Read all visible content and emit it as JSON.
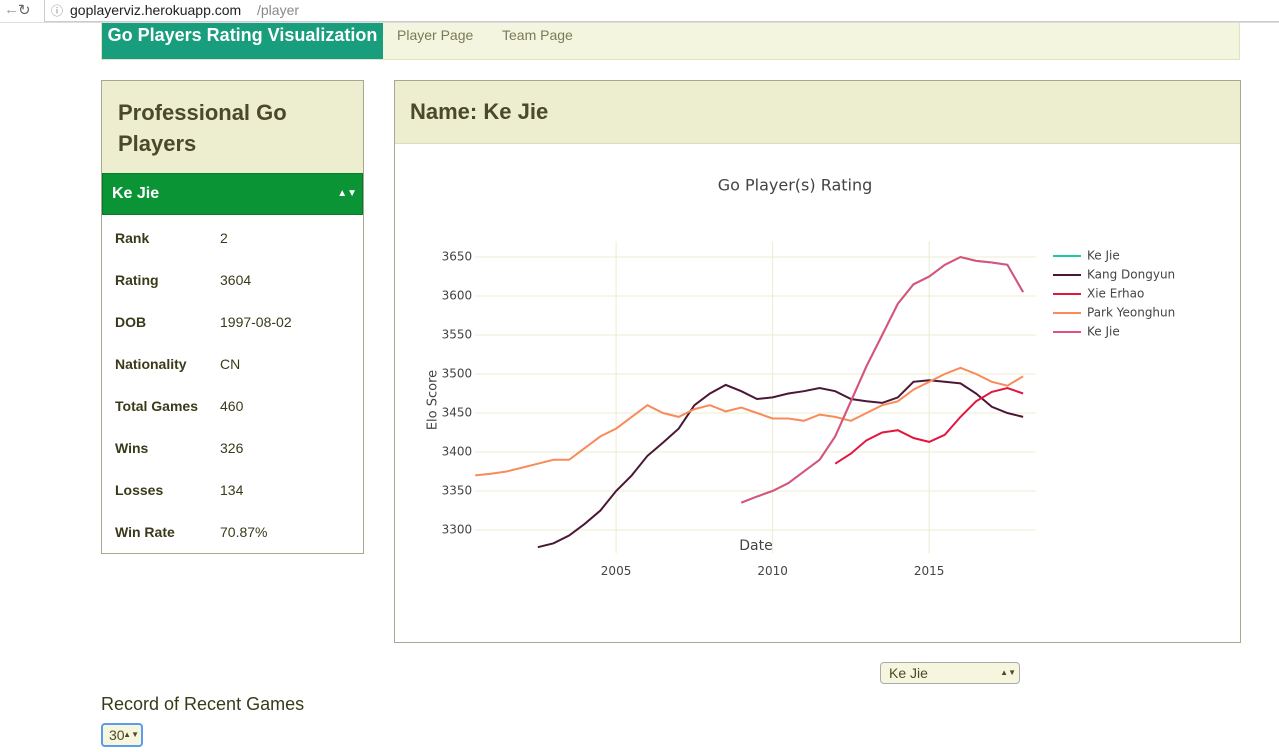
{
  "browser": {
    "url_host": "goplayerviz.herokuapp.com",
    "url_path": "/player"
  },
  "nav": {
    "brand": "Go Players Rating Visualization",
    "links": [
      "Player Page",
      "Team Page"
    ]
  },
  "sidebar": {
    "title": "Professional Go Players",
    "selected_player": "Ke Jie",
    "rows": [
      [
        "Rank",
        "2"
      ],
      [
        "Rating",
        "3604"
      ],
      [
        "DOB",
        "1997-08-02"
      ],
      [
        "Nationality",
        "CN"
      ],
      [
        "Total Games",
        "460"
      ],
      [
        "Wins",
        "326"
      ],
      [
        "Losses",
        "134"
      ],
      [
        "Win Rate",
        "70.87%"
      ]
    ]
  },
  "panel": {
    "title": "Name: Ke Jie"
  },
  "chart_data": {
    "type": "line",
    "title": "Go Player(s) Rating",
    "x_label": "Date",
    "y_label": "Elo Score",
    "x": [
      2000.5,
      2001,
      2001.5,
      2002,
      2002.5,
      2003,
      2003.5,
      2004,
      2004.5,
      2005,
      2005.5,
      2006,
      2006.5,
      2007,
      2007.5,
      2008,
      2008.5,
      2009,
      2009.5,
      2010,
      2010.5,
      2011,
      2011.5,
      2012,
      2012.5,
      2013,
      2013.5,
      2014,
      2014.5,
      2015,
      2015.5,
      2016,
      2016.5,
      2017,
      2017.5,
      2018
    ],
    "series": [
      {
        "name": "Ke Jie",
        "color": "#1fc8a6",
        "values": [
          null,
          null,
          null,
          null,
          null,
          null,
          null,
          null,
          null,
          null,
          null,
          null,
          null,
          null,
          null,
          null,
          null,
          3335,
          3343,
          3350,
          3360,
          3375,
          3390,
          3420,
          3465,
          3510,
          3550,
          3590,
          3615,
          3625,
          3640,
          3650,
          3645,
          3643,
          3640,
          3605
        ]
      },
      {
        "name": "Kang Dongyun",
        "color": "#4a1736",
        "values": [
          null,
          null,
          null,
          null,
          3278,
          3283,
          3293,
          3308,
          3325,
          3350,
          3370,
          3395,
          3412,
          3430,
          3460,
          3475,
          3486,
          3478,
          3468,
          3470,
          3475,
          3478,
          3482,
          3478,
          3468,
          3465,
          3463,
          3470,
          3490,
          3492,
          3490,
          3488,
          3475,
          3458,
          3450,
          3445
        ]
      },
      {
        "name": "Xie Erhao",
        "color": "#e3163f",
        "values": [
          null,
          null,
          null,
          null,
          null,
          null,
          null,
          null,
          null,
          null,
          null,
          null,
          null,
          null,
          null,
          null,
          null,
          null,
          null,
          null,
          null,
          null,
          null,
          3385,
          3398,
          3415,
          3425,
          3428,
          3418,
          3413,
          3422,
          3445,
          3465,
          3477,
          3482,
          3475
        ]
      },
      {
        "name": "Park Yeonghun",
        "color": "#f98b5b",
        "values": [
          3370,
          3372,
          3375,
          3380,
          3385,
          3390,
          3390,
          3405,
          3420,
          3430,
          3445,
          3460,
          3450,
          3445,
          3455,
          3460,
          3452,
          3457,
          3450,
          3443,
          3443,
          3440,
          3448,
          3445,
          3440,
          3450,
          3460,
          3465,
          3480,
          3490,
          3500,
          3508,
          3500,
          3490,
          3485,
          3497
        ]
      },
      {
        "name": "Ke Jie",
        "color": "#e0507a",
        "values": [
          null,
          null,
          null,
          null,
          null,
          null,
          null,
          null,
          null,
          null,
          null,
          null,
          null,
          null,
          null,
          null,
          null,
          3335,
          3343,
          3350,
          3360,
          3375,
          3390,
          3420,
          3465,
          3510,
          3550,
          3590,
          3615,
          3625,
          3640,
          3650,
          3645,
          3643,
          3640,
          3605
        ]
      }
    ],
    "xlim": [
      2000.5,
      2018.4
    ],
    "xticks": [
      2005,
      2010,
      2015
    ],
    "ylim": [
      3270,
      3670
    ],
    "yticks": [
      3300,
      3350,
      3400,
      3450,
      3500,
      3550,
      3600,
      3650
    ],
    "grid": true
  },
  "chart_select": "Ke Jie",
  "recent": {
    "title": "Record of Recent Games",
    "count": "30"
  }
}
